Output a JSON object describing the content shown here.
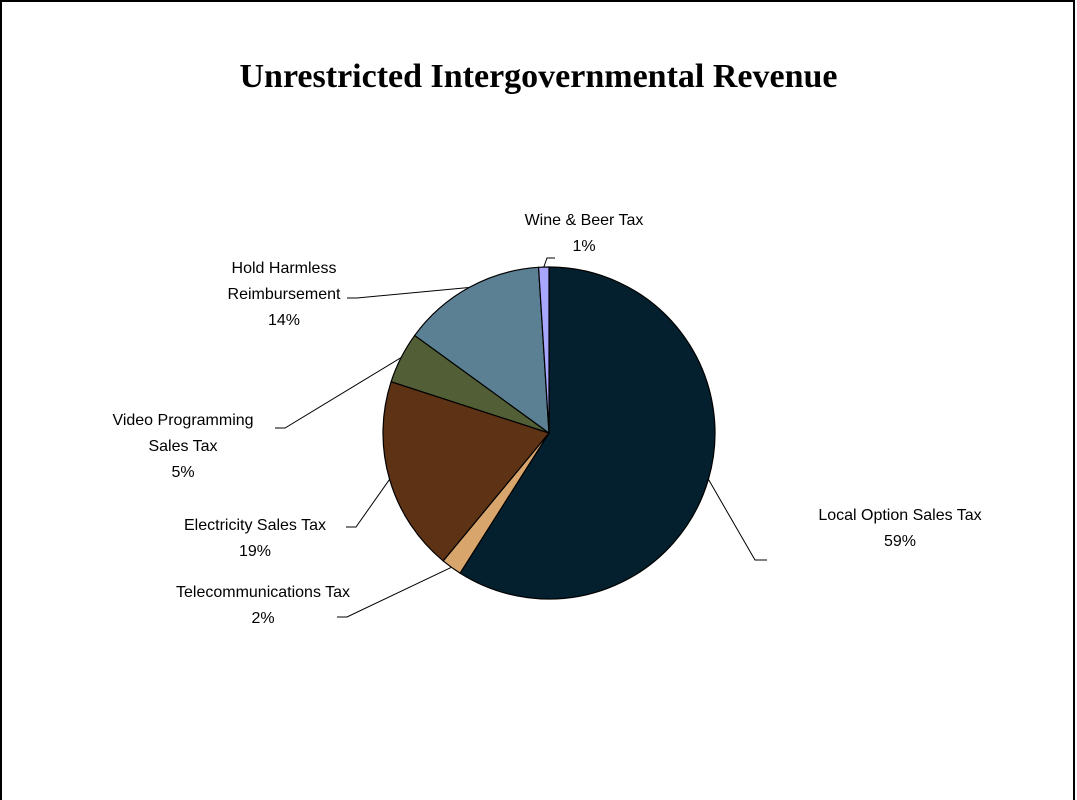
{
  "chart_data": {
    "type": "pie",
    "title": "Unrestricted Intergovernmental Revenue",
    "legend": "none",
    "slices": [
      {
        "name": "Local Option Sales Tax",
        "value": 59,
        "label": "59%",
        "color": "#04202e"
      },
      {
        "name": "Telecommunications Tax",
        "value": 2,
        "label": "2%",
        "color": "#d8a56c"
      },
      {
        "name": "Electricity Sales Tax",
        "value": 19,
        "label": "19%",
        "color": "#5e3214"
      },
      {
        "name": "Video Programming Sales Tax",
        "value": 5,
        "label": "5%",
        "color": "#525f36"
      },
      {
        "name": "Hold Harmless Reimbursement",
        "value": 14,
        "label": "14%",
        "color": "#5c8093"
      },
      {
        "name": "Wine & Beer Tax",
        "value": 1,
        "label": "1%",
        "color": "#a8a6ff"
      }
    ]
  }
}
